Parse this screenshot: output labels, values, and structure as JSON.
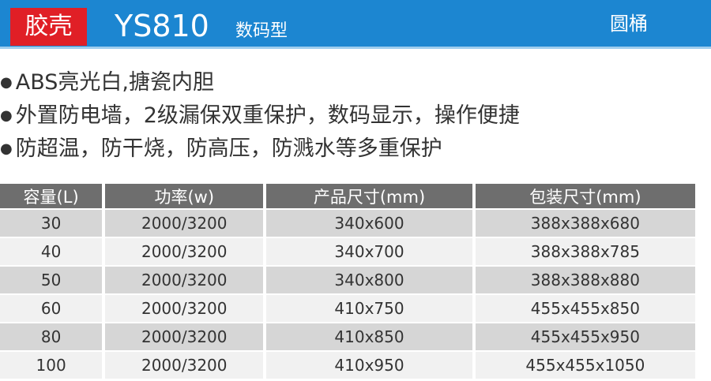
{
  "header": {
    "badge": "胶壳",
    "model": "YS810",
    "suffix": "数码型",
    "shape": "圆桶"
  },
  "features": [
    "ABS亮光白,搪瓷内胆",
    "外置防电墙，2级漏保双重保护，数码显示，操作便捷",
    "防超温，防干烧，防高压，防溅水等多重保护"
  ],
  "table": {
    "columns": [
      "容量(L)",
      "功率(w)",
      "产品尺寸(mm)",
      "包装尺寸(mm)"
    ],
    "rows": [
      [
        "30",
        "2000/3200",
        "340x600",
        "388x388x680"
      ],
      [
        "40",
        "2000/3200",
        "340x700",
        "388x388x785"
      ],
      [
        "50",
        "2000/3200",
        "340x800",
        "388x388x880"
      ],
      [
        "60",
        "2000/3200",
        "410x750",
        "455x455x850"
      ],
      [
        "80",
        "2000/3200",
        "410x850",
        "455x455x950"
      ],
      [
        "100",
        "2000/3200",
        "410x950",
        "455x455x1050"
      ]
    ]
  }
}
